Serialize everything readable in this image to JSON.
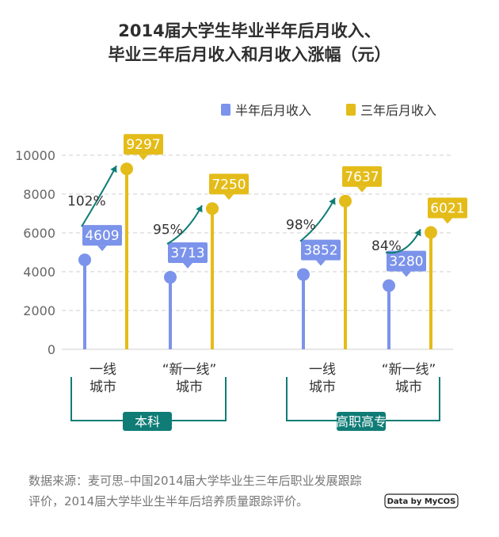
{
  "title_line1": "2014届大学生毕业半年后月收入、",
  "title_line2": "毕业三年后月收入和月收入涨幅（元）",
  "legend": [
    "半年后月收入",
    "三年后月收入"
  ],
  "source_line1": "数据来源：麦可思–中国2014届大学毕业生三年后职业发展跟踪",
  "source_line2": "评价，2014届大学毕业生半年后培养质量跟踪评价。",
  "brand": "Data by MyCOS",
  "colors": {
    "half": "#7b93ea",
    "three": "#e4bc19",
    "group": "#0f7c76",
    "arrow": "#0f7c76",
    "grid": "#cfcfcf"
  },
  "chart_data": {
    "type": "bar",
    "y_ticks": [
      "0",
      "2000",
      "4000",
      "6000",
      "8000",
      "10000"
    ],
    "ylim": [
      0,
      10000
    ],
    "grid": true,
    "legend_position": "top-right",
    "categories": [
      {
        "line1": "一线",
        "line2": "城市"
      },
      {
        "line1": "“新一线”",
        "line2": "城市"
      },
      {
        "line1": "一线",
        "line2": "城市"
      },
      {
        "line1": "“新一线”",
        "line2": "城市"
      }
    ],
    "groups": [
      "本科",
      "高职高专"
    ],
    "series": [
      {
        "name": "半年后月收入",
        "values": [
          4609,
          3713,
          3852,
          3280
        ]
      },
      {
        "name": "三年后月收入",
        "values": [
          9297,
          7250,
          7637,
          6021
        ]
      }
    ],
    "growth": [
      "102%",
      "95%",
      "98%",
      "84%"
    ]
  }
}
